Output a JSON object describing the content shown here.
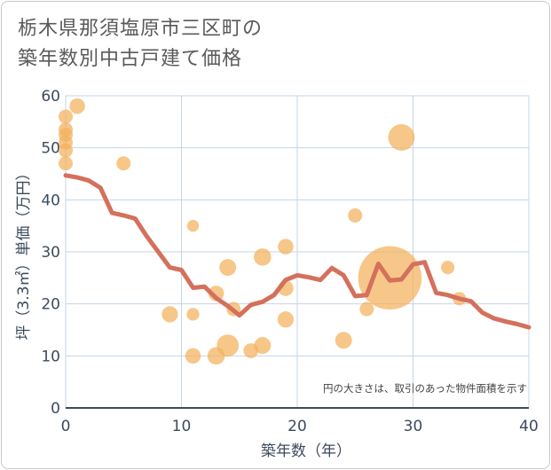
{
  "chart_data": {
    "type": "scatter",
    "title_line1": "栃木県那須塩原市三区町の",
    "title_line2": "築年数別中古戸建て価格",
    "xlabel": "築年数（年）",
    "ylabel": "坪（3.3㎡）単価（万円）",
    "xlim": [
      0,
      40
    ],
    "ylim": [
      0,
      60
    ],
    "xticks": [
      0,
      10,
      20,
      30,
      40
    ],
    "yticks": [
      0,
      10,
      20,
      30,
      40,
      50,
      60
    ],
    "grid": true,
    "annotation": "円の大きさは、取引のあった物件面積を示す",
    "colors": {
      "bubble": "#f2b25c",
      "line": "#d4705c",
      "grid": "#c5d5e6",
      "axis": "#3c4a5c"
    },
    "bubbles": [
      {
        "x": 0,
        "y": 56,
        "size": 1
      },
      {
        "x": 0,
        "y": 53.5,
        "size": 1
      },
      {
        "x": 0,
        "y": 52.5,
        "size": 1
      },
      {
        "x": 0,
        "y": 51,
        "size": 1
      },
      {
        "x": 0,
        "y": 49.5,
        "size": 1
      },
      {
        "x": 0,
        "y": 47,
        "size": 1
      },
      {
        "x": 1,
        "y": 58,
        "size": 1.2
      },
      {
        "x": 5,
        "y": 47,
        "size": 1
      },
      {
        "x": 9,
        "y": 18,
        "size": 1.3
      },
      {
        "x": 11,
        "y": 35,
        "size": 0.7
      },
      {
        "x": 11,
        "y": 18,
        "size": 0.8
      },
      {
        "x": 11,
        "y": 10,
        "size": 1.2
      },
      {
        "x": 13,
        "y": 22,
        "size": 1.2
      },
      {
        "x": 13,
        "y": 10,
        "size": 1.5
      },
      {
        "x": 14,
        "y": 27,
        "size": 1.4
      },
      {
        "x": 14,
        "y": 12,
        "size": 2.4
      },
      {
        "x": 14.5,
        "y": 19,
        "size": 1
      },
      {
        "x": 16,
        "y": 11,
        "size": 1.1
      },
      {
        "x": 17,
        "y": 29,
        "size": 1.5
      },
      {
        "x": 17,
        "y": 12,
        "size": 1.4
      },
      {
        "x": 19,
        "y": 31,
        "size": 1.2
      },
      {
        "x": 19,
        "y": 23,
        "size": 1.2
      },
      {
        "x": 19,
        "y": 17,
        "size": 1.3
      },
      {
        "x": 24,
        "y": 13,
        "size": 1.4
      },
      {
        "x": 25,
        "y": 37,
        "size": 1
      },
      {
        "x": 26,
        "y": 19,
        "size": 1
      },
      {
        "x": 28,
        "y": 25,
        "size": 20
      },
      {
        "x": 29,
        "y": 52,
        "size": 3.5
      },
      {
        "x": 33,
        "y": 27,
        "size": 0.9
      },
      {
        "x": 34,
        "y": 21,
        "size": 0.9
      }
    ],
    "trend": {
      "x": [
        0,
        1,
        2,
        3,
        4,
        5,
        6,
        7,
        8,
        9,
        10,
        11,
        12,
        13,
        14,
        15,
        16,
        17,
        18,
        19,
        20,
        21,
        22,
        23,
        24,
        25,
        26,
        27,
        28,
        29,
        30,
        31,
        32,
        33,
        34,
        35,
        36,
        37,
        38,
        39,
        40
      ],
      "y": [
        44.7,
        44.3,
        43.7,
        42.3,
        37.5,
        37,
        36.4,
        33,
        30,
        27,
        26.5,
        23.1,
        23.3,
        21.1,
        19.6,
        17.8,
        19.8,
        20.4,
        21.7,
        24.6,
        25.5,
        25.1,
        24.6,
        26.9,
        25.5,
        21.5,
        21.7,
        27.7,
        24.5,
        24.7,
        27.6,
        28,
        22.1,
        21.7,
        21,
        20.5,
        18.3,
        17.2,
        16.6,
        16.1,
        15.5
      ]
    }
  }
}
